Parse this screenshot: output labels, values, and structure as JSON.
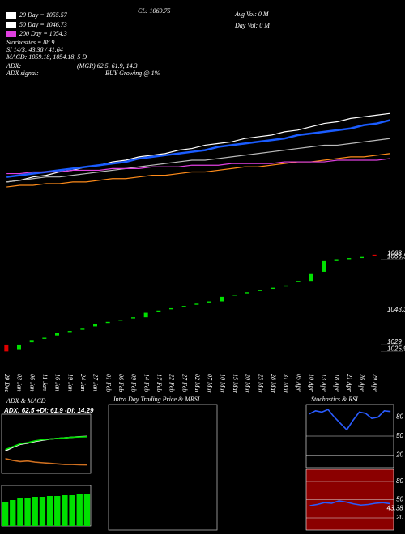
{
  "chart_data": [
    {
      "type": "line",
      "ylim": [
        1010,
        1131
      ],
      "annotations": [
        "20 Day = 1055.57",
        "50 Day = 1046.73",
        "200 Day = 1054.3",
        "Stochastics = 88.9",
        "SI 14/3: 43.38 / 41.64",
        "MACD: 1059.18, 1054.18, 5 D",
        "CL: 1069.75",
        "Avg Vol: 0 M",
        "Day Vol: 0 M",
        "ADX:",
        "(MGR) 62.5, 61.9, 14.3",
        "ADX signal:",
        "BUY Growing @ 1%"
      ],
      "series": [
        {
          "color": "#ffffff",
          "values": [
            1027,
            1028,
            1030,
            1031,
            1033,
            1034,
            1036,
            1037,
            1039,
            1040,
            1042,
            1043,
            1044,
            1046,
            1047,
            1049,
            1050,
            1051,
            1053,
            1054,
            1055,
            1057,
            1058,
            1060,
            1062,
            1063,
            1065,
            1066,
            1067,
            1068
          ]
        },
        {
          "color": "#1a5cff",
          "values": [
            1030,
            1031,
            1032,
            1033,
            1034,
            1035,
            1036,
            1037,
            1038,
            1039,
            1041,
            1042,
            1043,
            1044,
            1045,
            1046,
            1048,
            1049,
            1050,
            1051,
            1052,
            1053,
            1055,
            1056,
            1057,
            1058,
            1059,
            1061,
            1062,
            1064
          ]
        },
        {
          "color": "#bbbbbb",
          "values": [
            1027,
            1028,
            1029,
            1030,
            1030,
            1031,
            1032,
            1033,
            1034,
            1035,
            1036,
            1037,
            1038,
            1039,
            1040,
            1040,
            1041,
            1042,
            1043,
            1044,
            1045,
            1046,
            1047,
            1048,
            1049,
            1049,
            1050,
            1051,
            1052,
            1053
          ]
        },
        {
          "color": "#ff8c1a",
          "values": [
            1024,
            1025,
            1025,
            1026,
            1026,
            1027,
            1027,
            1028,
            1029,
            1029,
            1030,
            1031,
            1031,
            1032,
            1033,
            1033,
            1034,
            1035,
            1036,
            1036,
            1037,
            1038,
            1039,
            1039,
            1040,
            1041,
            1042,
            1042,
            1043,
            1044
          ]
        },
        {
          "color": "#e040e0",
          "values": [
            1032,
            1032,
            1033,
            1033,
            1033,
            1034,
            1034,
            1034,
            1035,
            1035,
            1035,
            1036,
            1036,
            1036,
            1037,
            1037,
            1037,
            1038,
            1038,
            1038,
            1038,
            1039,
            1039,
            1039,
            1039,
            1040,
            1040,
            1040,
            1040,
            1041
          ]
        }
      ]
    },
    {
      "type": "candlestick",
      "ylim": [
        1024,
        1072
      ],
      "categories": [
        "29 Dec",
        "03 Jan",
        "06 Jan",
        "11 Jan",
        "16 Jan",
        "19 Jan",
        "24 Jan",
        "27 Jan",
        "01 Feb",
        "06 Feb",
        "09 Feb",
        "14 Feb",
        "17 Feb",
        "22 Feb",
        "27 Feb",
        "02 Mar",
        "07 Mar",
        "10 Mar",
        "15 Mar",
        "20 Mar",
        "23 Mar",
        "28 Mar",
        "31 Mar",
        "05 Apr",
        "10 Apr",
        "13 Apr",
        "18 Apr",
        "21 Apr",
        "26 Apr",
        "29 Apr"
      ],
      "open": [
        1029,
        1027,
        1030,
        1031.5,
        1033,
        1034.5,
        1035.5,
        1037,
        1038.5,
        1039.5,
        1040.5,
        1041,
        1043.5,
        1044.5,
        1045.5,
        1046.5,
        1047.5,
        1048,
        1050.5,
        1051.5,
        1052.5,
        1053.5,
        1054.5,
        1056.5,
        1057,
        1061,
        1066,
        1066.5,
        1067,
        1068.5
      ],
      "close": [
        1026,
        1029,
        1031,
        1032,
        1034,
        1035,
        1036,
        1038,
        1039,
        1040,
        1041,
        1043,
        1044,
        1045,
        1046,
        1047,
        1048,
        1050,
        1051,
        1052,
        1053,
        1054,
        1055,
        1057,
        1060,
        1066,
        1066.5,
        1067,
        1067.5,
        1068
      ],
      "yticks": [
        1068,
        {
          "value": 1066.5,
          "label": "1066.50"
        },
        1043.3,
        1029,
        1025.98
      ]
    },
    {
      "type": "line",
      "title": "ADX & MACD",
      "subtitle": "ADX: 62.5 +DI: 61.9 -DI: 14.29",
      "ylim": [
        0,
        100
      ],
      "series": [
        {
          "color": "#ffffff",
          "values": [
            38,
            44,
            49,
            51,
            54,
            56,
            58,
            59,
            60,
            61,
            62,
            62.5
          ]
        },
        {
          "color": "#00e000",
          "values": [
            40,
            45,
            50,
            52,
            55,
            57,
            58,
            59,
            60,
            61,
            61.5,
            61.9
          ]
        },
        {
          "color": "#d07020",
          "values": [
            25,
            22,
            20,
            21,
            19,
            18,
            17,
            16,
            15,
            15,
            14.5,
            14.29
          ]
        }
      ]
    },
    {
      "type": "bar",
      "color": "#00e000",
      "ylim": [
        0,
        5
      ],
      "values": [
        3,
        3.2,
        3.4,
        3.5,
        3.6,
        3.6,
        3.7,
        3.7,
        3.8,
        3.8,
        3.9,
        4
      ]
    },
    {
      "type": "box",
      "title": "Intra Day Trading Price & MRSI"
    },
    {
      "type": "line",
      "title": "Stochastics & RSI",
      "ylim": [
        0,
        100
      ],
      "yticks": [
        80,
        50,
        20
      ],
      "series": [
        {
          "color": "#2a5cff",
          "values": [
            85,
            90,
            88,
            92,
            80,
            70,
            60,
            75,
            88,
            86,
            78,
            80,
            90,
            88.9
          ]
        }
      ]
    },
    {
      "type": "line",
      "ylim": [
        0,
        100
      ],
      "yticks": [
        80,
        50,
        20
      ],
      "background": "#8b0000",
      "last_value": 43.38,
      "series": [
        {
          "color": "#2a5cff",
          "values": [
            40,
            42,
            45,
            44,
            48,
            46,
            43,
            41,
            42,
            44,
            45,
            43.38
          ]
        }
      ]
    }
  ]
}
